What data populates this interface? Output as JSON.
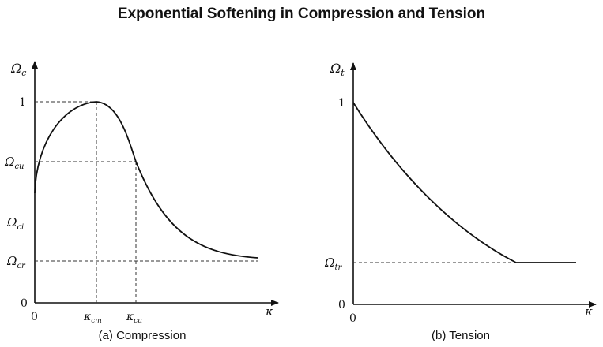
{
  "title": "Exponential Softening in Compression and Tension",
  "panels": {
    "compression": {
      "caption": "(a) Compression",
      "y_axis_symbol": "Ω",
      "y_axis_sub": "c",
      "x_axis_symbol": "κ",
      "y_tick_one": "1",
      "y_tick_zero": "0",
      "x_tick_zero": "0",
      "omega_cu": {
        "symbol": "Ω",
        "sub": "cu"
      },
      "omega_ci": {
        "symbol": "Ω",
        "sub": "ci"
      },
      "omega_cr": {
        "symbol": "Ω",
        "sub": "cr"
      },
      "kappa_cm": {
        "symbol": "κ",
        "sub": "cm"
      },
      "kappa_cu": {
        "symbol": "κ",
        "sub": "cu"
      }
    },
    "tension": {
      "caption": "(b) Tension",
      "y_axis_symbol": "Ω",
      "y_axis_sub": "t",
      "x_axis_symbol": "κ",
      "y_tick_one": "1",
      "y_tick_zero": "0",
      "x_tick_zero": "0",
      "omega_tr": {
        "symbol": "Ω",
        "sub": "tr"
      }
    }
  },
  "colors": {
    "curve": "#111111",
    "dashed": "#333333"
  }
}
